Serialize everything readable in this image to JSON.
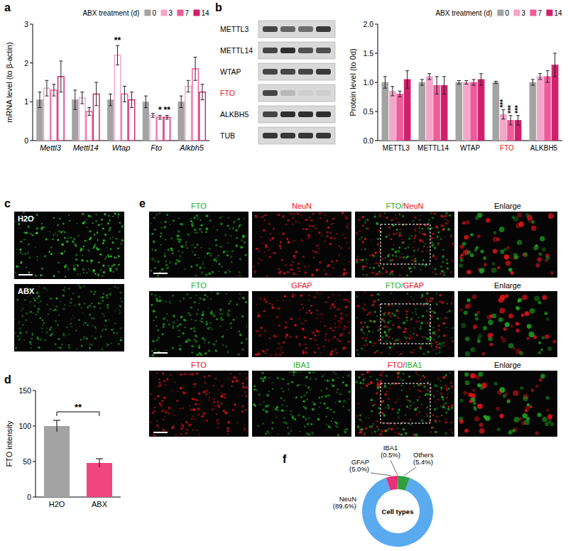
{
  "panel_letters": [
    "a",
    "b",
    "c",
    "d",
    "e",
    "f"
  ],
  "chart_data": [
    {
      "type": "bar",
      "categories": [
        "Mettl3",
        "Mettl14",
        "Wtap",
        "Fto",
        "Alkbh5"
      ],
      "y_label": "mRNA level (to β-actin)",
      "legend_title": "ABX treatment (d)",
      "legend": "top",
      "ylim": [
        0,
        3
      ],
      "yticks": [
        0,
        1,
        2,
        3
      ],
      "series": [
        {
          "name": "0",
          "color": "#a3a3a3",
          "values": [
            1.05,
            1.05,
            1.05,
            1.0,
            1.0
          ],
          "errors": [
            0.2,
            0.25,
            0.15,
            0.15,
            0.15
          ]
        },
        {
          "name": "3",
          "color": "#f4a6c8",
          "values": [
            1.35,
            1.1,
            2.2,
            0.65,
            1.4
          ],
          "errors": [
            0.2,
            0.15,
            0.25,
            0.05,
            0.15
          ],
          "significance": [
            null,
            null,
            "**",
            null,
            null
          ]
        },
        {
          "name": "7",
          "color": "#ee5b9b",
          "values": [
            1.3,
            0.75,
            1.2,
            0.6,
            1.85
          ],
          "errors": [
            0.15,
            0.1,
            0.2,
            0.05,
            0.3
          ],
          "significance": [
            null,
            null,
            null,
            "*",
            null
          ]
        },
        {
          "name": "14",
          "color": "#d11f6b",
          "values": [
            1.65,
            1.2,
            1.05,
            0.6,
            1.25
          ],
          "errors": [
            0.4,
            0.3,
            0.2,
            0.05,
            0.2
          ],
          "significance": [
            null,
            null,
            null,
            "**",
            null
          ]
        }
      ]
    },
    {
      "type": "bar",
      "categories": [
        "METTL3",
        "METTL14",
        "WTAP",
        "FTO",
        "ALKBH5"
      ],
      "y_label": "Protein level (to 0d)",
      "legend_title": "ABX treatment (d)",
      "legend": "top",
      "ylim": [
        0,
        2
      ],
      "yticks": [
        {
          "value": 0,
          "label": "0.0"
        },
        0.5,
        {
          "value": 1,
          "label": "1.0"
        },
        1.5,
        {
          "value": 2,
          "label": "2.0"
        }
      ],
      "series": [
        {
          "name": "0",
          "color": "#a3a3a3",
          "values": [
            1.0,
            1.0,
            1.0,
            1.0,
            1.0
          ],
          "errors": [
            0.1,
            0.05,
            0.03,
            0.02,
            0.05
          ]
        },
        {
          "name": "3",
          "color": "#f4a6c8",
          "values": [
            0.85,
            1.1,
            1.0,
            0.45,
            1.1
          ],
          "errors": [
            0.08,
            0.05,
            0.03,
            0.08,
            0.05
          ],
          "significance": [
            null,
            null,
            null,
            "***",
            null
          ]
        },
        {
          "name": "7",
          "color": "#ee5b9b",
          "values": [
            0.8,
            0.95,
            1.0,
            0.35,
            1.1
          ],
          "errors": [
            0.05,
            0.15,
            0.05,
            0.08,
            0.1
          ],
          "significance": [
            null,
            null,
            null,
            "***",
            null
          ]
        },
        {
          "name": "14",
          "color": "#d11f6b",
          "values": [
            1.05,
            0.95,
            1.05,
            0.35,
            1.3
          ],
          "errors": [
            0.15,
            0.15,
            0.1,
            0.08,
            0.2
          ],
          "significance": [
            null,
            null,
            null,
            "***",
            null
          ]
        }
      ]
    },
    {
      "type": "bar",
      "categories": [
        "H2O",
        "ABX"
      ],
      "y_label": "FTO intensity",
      "ylim": [
        0,
        150
      ],
      "yticks": [
        0,
        50,
        100,
        150
      ],
      "values": [
        100,
        48
      ],
      "errors": [
        8,
        6
      ],
      "colors": [
        "#a3a3a3",
        "#f0457f"
      ],
      "annotations": [
        {
          "text": "**",
          "between": [
            "H2O",
            "ABX"
          ]
        }
      ]
    },
    {
      "type": "donut",
      "categories": [
        "NeuN",
        "GFAP",
        "IBA1",
        "Others"
      ],
      "values": [
        89.6,
        5.0,
        0.5,
        5.4
      ],
      "value_labels": [
        "(89.6%)",
        "(5.0%)",
        "(0.5%)",
        "(5.4%)"
      ],
      "colors": [
        "#5aaaf0",
        "#e8307a",
        "#e0201c",
        "#2e9e3e"
      ],
      "center_label": "Cell types"
    }
  ],
  "blot": {
    "rows": [
      {
        "label": "METTL3",
        "color": "#000000"
      },
      {
        "label": "METTL14",
        "color": "#000000"
      },
      {
        "label": "WTAP",
        "color": "#000000"
      },
      {
        "label": "FTO",
        "color": "#e8141c"
      },
      {
        "label": "ALKBH5",
        "color": "#000000"
      },
      {
        "label": "TUB",
        "color": "#000000"
      }
    ]
  },
  "panel_c": {
    "images": [
      {
        "label": "H2O"
      },
      {
        "label": "ABX"
      }
    ]
  },
  "panel_e": {
    "rows": [
      {
        "channels": [
          "FTO",
          "NeuN"
        ],
        "colors": [
          "#1fae1f",
          "#e8141c"
        ],
        "merged": "FTO/NeuN",
        "enlarge": "Enlarge"
      },
      {
        "channels": [
          "FTO",
          "GFAP"
        ],
        "colors": [
          "#1fae1f",
          "#e8141c"
        ],
        "merged": "FTO/GFAP",
        "enlarge": "Enlarge"
      },
      {
        "channels": [
          "FTO",
          "IBA1"
        ],
        "colors": [
          "#e8141c",
          "#1fae1f"
        ],
        "merged": "FTO/IBA1",
        "enlarge": "Enlarge"
      }
    ]
  }
}
